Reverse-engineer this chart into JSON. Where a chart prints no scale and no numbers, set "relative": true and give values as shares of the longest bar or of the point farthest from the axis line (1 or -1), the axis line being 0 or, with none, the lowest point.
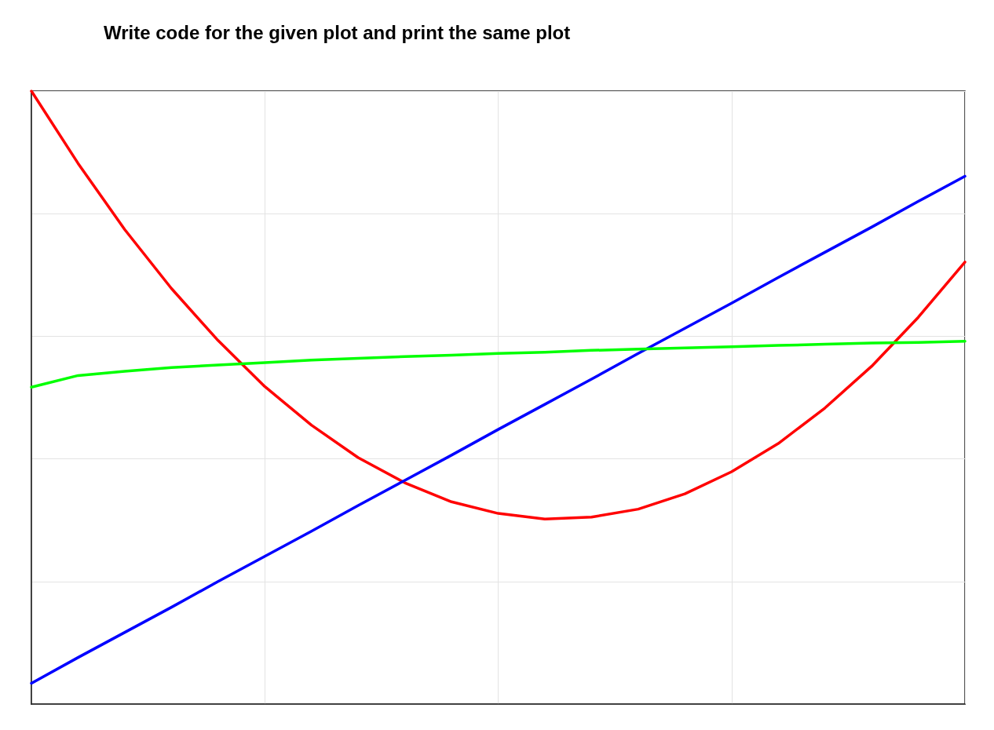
{
  "chart_data": {
    "type": "line",
    "title": "Write code for the given plot and print the same plot",
    "relative": true,
    "grid": true,
    "line_style": "solid",
    "categories": [
      null,
      null,
      null,
      null,
      null,
      null,
      null,
      null,
      null,
      null,
      null,
      null,
      null,
      null,
      null,
      null,
      null,
      null,
      null,
      null,
      null
    ],
    "series": [
      {
        "color": "#ff0000",
        "values": [
          1.0,
          0.882,
          0.774,
          0.678,
          0.593,
          0.518,
          0.455,
          0.402,
          0.361,
          0.33,
          0.311,
          0.302,
          0.305,
          0.318,
          0.343,
          0.379,
          0.425,
          0.483,
          0.551,
          0.631,
          0.721
        ]
      },
      {
        "color": "#0000ff",
        "values": [
          0.034,
          0.076,
          0.117,
          0.158,
          0.2,
          0.241,
          0.282,
          0.324,
          0.365,
          0.406,
          0.448,
          0.489,
          0.53,
          0.572,
          0.613,
          0.654,
          0.696,
          0.737,
          0.778,
          0.82,
          0.861
        ]
      },
      {
        "color": "#00ff00",
        "values": [
          0.517,
          0.536,
          0.543,
          0.549,
          0.553,
          0.557,
          0.561,
          0.564,
          0.567,
          0.569,
          0.572,
          0.574,
          0.577,
          0.579,
          0.581,
          0.583,
          0.585,
          0.587,
          0.589,
          0.59,
          0.592
        ]
      }
    ]
  }
}
